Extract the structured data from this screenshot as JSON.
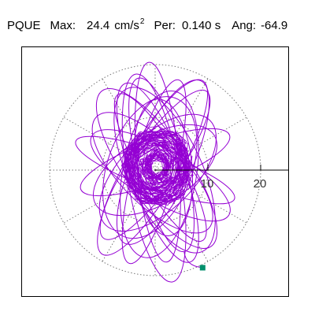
{
  "header": {
    "station": "PQUE",
    "max_label": "Max:",
    "max_value": "24.4",
    "max_unit": "cm/s",
    "max_unit_power": "2",
    "period_label": "Per:",
    "period_value": "0.140 s",
    "angle_label": "Ang:",
    "angle_value": "-64.9"
  },
  "chart_data": {
    "type": "scatter",
    "title": "",
    "xlabel": "",
    "ylabel": "",
    "radial_ticks": [
      "10",
      "20"
    ],
    "radial_rings": [
      10,
      20
    ],
    "radius_max": 24.4,
    "spokes_deg": [
      0,
      30,
      60,
      90,
      120,
      150,
      180,
      210,
      240,
      270,
      300,
      330
    ],
    "grid": true,
    "series": [
      {
        "color": "#9400D3",
        "loops": [
          {
            "rx": 17,
            "ry": 4.5,
            "rot": 105,
            "cx": 1.2,
            "cy": 1.0
          },
          {
            "rx": 18,
            "ry": 5.0,
            "rot": 110,
            "cx": 0.5,
            "cy": -0.5
          },
          {
            "rx": 16,
            "ry": 4.0,
            "rot": 120,
            "cx": 1.0,
            "cy": 0.5
          },
          {
            "rx": 19,
            "ry": 5.0,
            "rot": 60,
            "cx": -0.5,
            "cy": 0.5
          },
          {
            "rx": 17,
            "ry": 4.5,
            "rot": 55,
            "cx": 0.0,
            "cy": 1.0
          },
          {
            "rx": 18,
            "ry": 4.0,
            "rot": 75,
            "cx": -0.2,
            "cy": -0.3
          },
          {
            "rx": 14,
            "ry": 7.0,
            "rot": 45,
            "cx": 0.5,
            "cy": -0.5
          },
          {
            "rx": 15,
            "ry": 6.0,
            "rot": 135,
            "cx": -0.5,
            "cy": -0.5
          },
          {
            "rx": 13,
            "ry": 5.5,
            "rot": 95,
            "cx": 1.5,
            "cy": 0.5
          },
          {
            "rx": 16,
            "ry": 7.0,
            "rot": 80,
            "cx": 0.8,
            "cy": -0.8
          },
          {
            "rx": 18,
            "ry": 6.0,
            "rot": 125,
            "cx": 0.3,
            "cy": 0.3
          },
          {
            "rx": 20,
            "ry": 5.0,
            "rot": 100,
            "cx": -0.2,
            "cy": -1.5
          },
          {
            "rx": 15,
            "ry": 4.0,
            "rot": 20,
            "cx": 0.0,
            "cy": 1.5
          },
          {
            "rx": 16,
            "ry": 3.5,
            "rot": 160,
            "cx": 0.0,
            "cy": 0.0
          },
          {
            "rx": 17,
            "ry": 7.0,
            "rot": 115,
            "cx": 1.8,
            "cy": 0.0
          },
          {
            "rx": 14,
            "ry": 8.0,
            "rot": 70,
            "cx": -1.0,
            "cy": 0.5
          },
          {
            "rx": 19,
            "ry": 4.0,
            "rot": 95,
            "cx": 0.5,
            "cy": 1.5
          },
          {
            "rx": 13,
            "ry": 6.5,
            "rot": 30,
            "cx": 0.0,
            "cy": 0.0
          },
          {
            "rx": 15,
            "ry": 5.0,
            "rot": 150,
            "cx": 1.0,
            "cy": -1.0
          },
          {
            "rx": 17,
            "ry": 5.5,
            "rot": 65,
            "cx": 1.5,
            "cy": 1.5
          }
        ],
        "end_point": {
          "x": 9.0,
          "y": -18.5
        }
      }
    ],
    "end_marker_color": "#008F6B"
  }
}
